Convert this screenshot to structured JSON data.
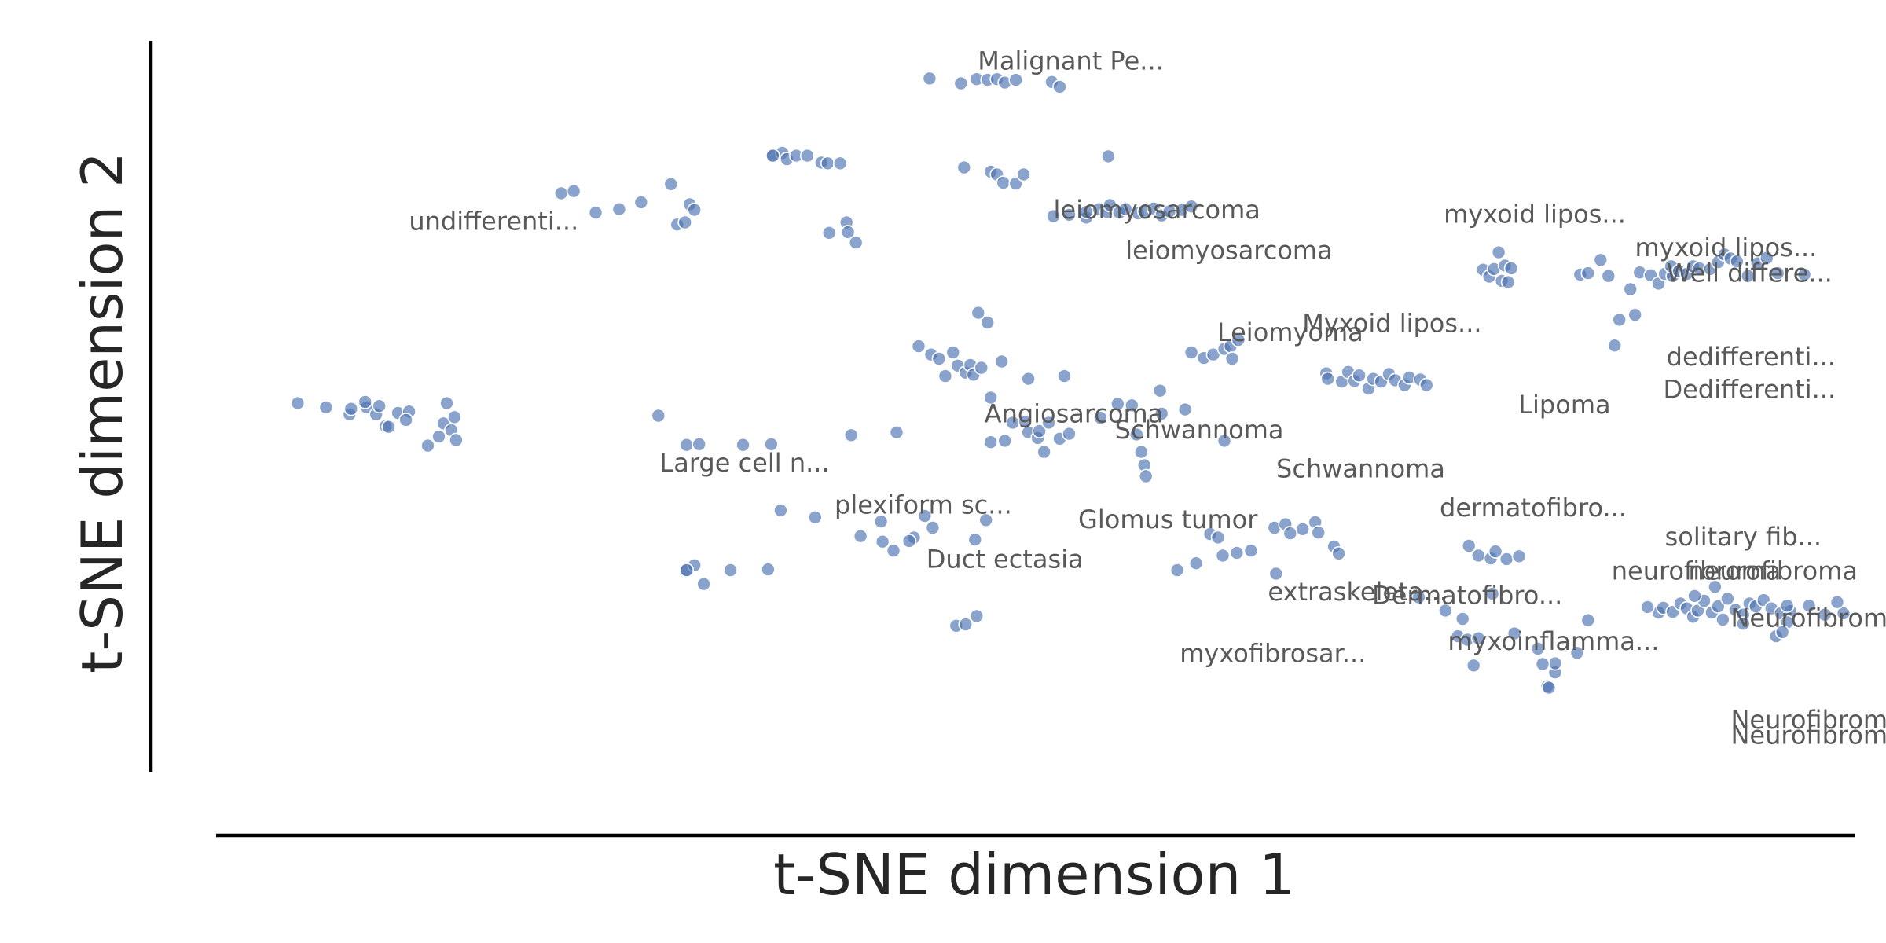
{
  "chart_data": {
    "type": "scatter",
    "xlabel": "t-SNE dimension 1",
    "ylabel": "t-SNE dimension 2",
    "xlim": [
      0,
      100
    ],
    "ylim": [
      0,
      100
    ],
    "grid": false,
    "marker_color": "#4c72b0",
    "points": [
      [
        41.5,
        95.5
      ],
      [
        43.5,
        94.8
      ],
      [
        44.5,
        95.4
      ],
      [
        45.2,
        95.3
      ],
      [
        45.8,
        95.4
      ],
      [
        46.3,
        94.9
      ],
      [
        47.0,
        95.3
      ],
      [
        49.3,
        95.0
      ],
      [
        49.8,
        94.3
      ],
      [
        43.7,
        82.7
      ],
      [
        45.4,
        82.1
      ],
      [
        45.8,
        81.7
      ],
      [
        46.2,
        80.5
      ],
      [
        47.0,
        80.4
      ],
      [
        47.5,
        81.7
      ],
      [
        49.4,
        75.7
      ],
      [
        50.4,
        75.9
      ],
      [
        51.5,
        75.5
      ],
      [
        51.5,
        76.3
      ],
      [
        52.3,
        76.7
      ],
      [
        52.8,
        76.3
      ],
      [
        53.0,
        77.3
      ],
      [
        53.6,
        76.2
      ],
      [
        54.0,
        76.7
      ],
      [
        54.8,
        76.1
      ],
      [
        55.2,
        76.4
      ],
      [
        55.8,
        76.8
      ],
      [
        56.3,
        75.8
      ],
      [
        56.8,
        76.4
      ],
      [
        57.6,
        76.6
      ],
      [
        58.2,
        77.1
      ],
      [
        18.0,
        79.0
      ],
      [
        18.8,
        79.3
      ],
      [
        20.2,
        76.2
      ],
      [
        21.7,
        76.7
      ],
      [
        23.1,
        77.7
      ],
      [
        25.0,
        80.3
      ],
      [
        25.4,
        74.5
      ],
      [
        25.9,
        74.8
      ],
      [
        26.2,
        77.4
      ],
      [
        26.5,
        76.6
      ],
      [
        31.5,
        84.4
      ],
      [
        32.1,
        84.8
      ],
      [
        32.4,
        83.9
      ],
      [
        33.0,
        84.4
      ],
      [
        33.7,
        84.4
      ],
      [
        34.6,
        83.4
      ],
      [
        35.0,
        83.3
      ],
      [
        35.8,
        83.3
      ],
      [
        35.1,
        73.3
      ],
      [
        36.2,
        74.8
      ],
      [
        36.3,
        73.4
      ],
      [
        36.8,
        71.9
      ],
      [
        1.2,
        48.8
      ],
      [
        3.0,
        48.2
      ],
      [
        4.5,
        47.2
      ],
      [
        4.6,
        48.0
      ],
      [
        5.6,
        48.2
      ],
      [
        5.5,
        49.0
      ],
      [
        6.2,
        47.2
      ],
      [
        6.4,
        48.4
      ],
      [
        6.8,
        45.5
      ],
      [
        7.0,
        45.4
      ],
      [
        7.6,
        47.4
      ],
      [
        8.3,
        47.6
      ],
      [
        8.1,
        46.4
      ],
      [
        9.5,
        42.7
      ],
      [
        10.2,
        44.0
      ],
      [
        10.5,
        45.9
      ],
      [
        10.7,
        48.8
      ],
      [
        11.0,
        44.9
      ],
      [
        11.2,
        46.8
      ],
      [
        11.3,
        43.5
      ],
      [
        24.2,
        47.0
      ],
      [
        26.0,
        42.8
      ],
      [
        26.8,
        42.9
      ],
      [
        29.6,
        42.8
      ],
      [
        31.4,
        42.9
      ],
      [
        26.0,
        24.8
      ],
      [
        26.5,
        25.5
      ],
      [
        27.1,
        22.8
      ],
      [
        28.8,
        24.8
      ],
      [
        31.2,
        24.9
      ],
      [
        40.8,
        57.0
      ],
      [
        41.6,
        55.8
      ],
      [
        42.1,
        55.2
      ],
      [
        42.5,
        52.7
      ],
      [
        43.0,
        56.1
      ],
      [
        43.3,
        54.2
      ],
      [
        43.8,
        53.2
      ],
      [
        44.1,
        54.3
      ],
      [
        44.3,
        52.9
      ],
      [
        44.8,
        53.9
      ],
      [
        44.6,
        61.8
      ],
      [
        45.2,
        60.4
      ],
      [
        46.1,
        54.8
      ],
      [
        45.4,
        49.6
      ],
      [
        47.8,
        52.3
      ],
      [
        50.1,
        52.7
      ],
      [
        36.5,
        44.2
      ],
      [
        39.4,
        44.6
      ],
      [
        45.4,
        43.2
      ],
      [
        46.3,
        43.4
      ],
      [
        46.8,
        46.0
      ],
      [
        47.6,
        46.1
      ],
      [
        47.8,
        44.6
      ],
      [
        48.4,
        43.8
      ],
      [
        48.5,
        44.8
      ],
      [
        49.1,
        46.0
      ],
      [
        48.8,
        41.8
      ],
      [
        49.8,
        43.7
      ],
      [
        50.4,
        44.4
      ],
      [
        52.4,
        46.7
      ],
      [
        53.5,
        48.7
      ],
      [
        54.4,
        48.5
      ],
      [
        56.3,
        47.3
      ],
      [
        54.7,
        44.3
      ],
      [
        55.0,
        41.8
      ],
      [
        55.2,
        39.9
      ],
      [
        55.3,
        38.3
      ],
      [
        56.2,
        50.6
      ],
      [
        57.8,
        47.9
      ],
      [
        60.3,
        43.4
      ],
      [
        58.2,
        56.1
      ],
      [
        59.0,
        55.3
      ],
      [
        59.6,
        55.8
      ],
      [
        60.3,
        56.6
      ],
      [
        60.7,
        57.0
      ],
      [
        60.8,
        55.2
      ],
      [
        61.2,
        57.9
      ],
      [
        66.8,
        53.1
      ],
      [
        66.9,
        52.3
      ],
      [
        67.8,
        51.9
      ],
      [
        68.2,
        53.3
      ],
      [
        68.6,
        52.0
      ],
      [
        68.9,
        52.8
      ],
      [
        69.5,
        50.9
      ],
      [
        69.8,
        52.3
      ],
      [
        70.3,
        51.9
      ],
      [
        70.8,
        53.0
      ],
      [
        71.2,
        52.1
      ],
      [
        71.8,
        51.4
      ],
      [
        72.1,
        52.5
      ],
      [
        72.8,
        52.2
      ],
      [
        73.2,
        51.4
      ],
      [
        76.8,
        68.0
      ],
      [
        77.2,
        67.0
      ],
      [
        77.5,
        68.1
      ],
      [
        78.2,
        68.6
      ],
      [
        78.6,
        68.2
      ],
      [
        78.0,
        66.4
      ],
      [
        77.8,
        70.5
      ],
      [
        78.4,
        66.2
      ],
      [
        83.0,
        67.3
      ],
      [
        83.5,
        67.5
      ],
      [
        84.3,
        69.4
      ],
      [
        84.8,
        67.1
      ],
      [
        85.2,
        57.1
      ],
      [
        85.5,
        60.8
      ],
      [
        86.8,
        67.6
      ],
      [
        87.5,
        67.2
      ],
      [
        88.0,
        66.0
      ],
      [
        88.4,
        67.4
      ],
      [
        88.9,
        67.1
      ],
      [
        88.8,
        68.5
      ],
      [
        89.3,
        67.8
      ],
      [
        89.8,
        67.4
      ],
      [
        90.2,
        68.5
      ],
      [
        90.6,
        68.2
      ],
      [
        91.3,
        68.1
      ],
      [
        91.8,
        69.1
      ],
      [
        92.2,
        70.2
      ],
      [
        92.6,
        69.6
      ],
      [
        93.0,
        69.2
      ],
      [
        93.7,
        67.1
      ],
      [
        94.3,
        68.9
      ],
      [
        94.9,
        69.7
      ],
      [
        95.6,
        67.5
      ],
      [
        97.3,
        67.3
      ],
      [
        86.5,
        61.5
      ],
      [
        86.2,
        65.2
      ],
      [
        32.0,
        33.4
      ],
      [
        34.2,
        32.4
      ],
      [
        37.1,
        29.7
      ],
      [
        38.4,
        31.8
      ],
      [
        38.5,
        28.9
      ],
      [
        39.2,
        27.6
      ],
      [
        40.5,
        29.5
      ],
      [
        40.2,
        29.0
      ],
      [
        41.7,
        30.9
      ],
      [
        41.2,
        32.6
      ],
      [
        45.1,
        32.0
      ],
      [
        44.4,
        29.2
      ],
      [
        63.5,
        30.9
      ],
      [
        64.2,
        31.4
      ],
      [
        64.5,
        30.1
      ],
      [
        65.3,
        30.7
      ],
      [
        66.1,
        31.7
      ],
      [
        66.3,
        30.2
      ],
      [
        67.3,
        28.2
      ],
      [
        67.6,
        27.2
      ],
      [
        57.3,
        24.8
      ],
      [
        58.5,
        25.8
      ],
      [
        59.4,
        30.0
      ],
      [
        59.9,
        29.5
      ],
      [
        60.2,
        26.9
      ],
      [
        61.1,
        27.3
      ],
      [
        62.0,
        27.6
      ],
      [
        63.6,
        24.3
      ],
      [
        75.9,
        28.3
      ],
      [
        76.5,
        26.9
      ],
      [
        77.3,
        26.5
      ],
      [
        77.6,
        27.5
      ],
      [
        78.3,
        26.4
      ],
      [
        79.1,
        26.8
      ],
      [
        43.2,
        16.8
      ],
      [
        43.8,
        17.0
      ],
      [
        44.5,
        18.2
      ],
      [
        72.7,
        20.9
      ],
      [
        74.4,
        19.0
      ],
      [
        75.5,
        17.8
      ],
      [
        75.2,
        15.3
      ],
      [
        75.8,
        14.8
      ],
      [
        77.4,
        21.4
      ],
      [
        76.5,
        15.0
      ],
      [
        78.8,
        15.7
      ],
      [
        76.2,
        11.1
      ],
      [
        80.3,
        13.5
      ],
      [
        83.5,
        17.6
      ],
      [
        81.4,
        10.1
      ],
      [
        81.4,
        11.4
      ],
      [
        82.8,
        12.9
      ],
      [
        80.9,
        8.1
      ],
      [
        80.6,
        11.3
      ],
      [
        81.0,
        7.9
      ],
      [
        88.0,
        18.7
      ],
      [
        87.3,
        19.5
      ],
      [
        88.3,
        19.4
      ],
      [
        88.9,
        18.8
      ],
      [
        89.4,
        20.0
      ],
      [
        89.8,
        19.3
      ],
      [
        90.2,
        18.1
      ],
      [
        90.5,
        19.0
      ],
      [
        90.9,
        20.4
      ],
      [
        91.4,
        18.7
      ],
      [
        91.8,
        19.6
      ],
      [
        92.1,
        17.7
      ],
      [
        92.4,
        20.7
      ],
      [
        92.9,
        19.1
      ],
      [
        93.4,
        18.4
      ],
      [
        93.8,
        20.0
      ],
      [
        94.2,
        19.6
      ],
      [
        94.7,
        20.5
      ],
      [
        95.2,
        19.3
      ],
      [
        95.8,
        18.6
      ],
      [
        96.4,
        18.9
      ],
      [
        96.2,
        19.7
      ],
      [
        97.6,
        19.7
      ],
      [
        98.6,
        18.4
      ],
      [
        99.8,
        18.6
      ],
      [
        90.3,
        21.1
      ],
      [
        91.6,
        22.4
      ],
      [
        93.4,
        17.1
      ],
      [
        96.2,
        17.3
      ],
      [
        95.5,
        15.3
      ],
      [
        95.9,
        15.9
      ],
      [
        99.4,
        20.2
      ],
      [
        26.0,
        24.8
      ],
      [
        31.5,
        84.4
      ],
      [
        52.9,
        84.3
      ]
    ],
    "annotations": [
      {
        "text": "Malignant Pe...",
        "x": 50.5,
        "y": 98.0
      },
      {
        "text": "undifferenti...",
        "x": 13.7,
        "y": 75.0
      },
      {
        "text": "leiomyosarcoma",
        "x": 56.0,
        "y": 76.6
      },
      {
        "text": "leiomyosarcoma",
        "x": 60.6,
        "y": 70.8
      },
      {
        "text": "myxoid lipos...",
        "x": 80.1,
        "y": 76.0
      },
      {
        "text": "myxoid lipos...",
        "x": 92.3,
        "y": 71.2
      },
      {
        "text": "Well differe...",
        "x": 93.8,
        "y": 67.5
      },
      {
        "text": "Myxoid lipos...",
        "x": 71.0,
        "y": 60.3
      },
      {
        "text": "Leiomyoma",
        "x": 64.5,
        "y": 59.0
      },
      {
        "text": "dedifferenti...",
        "x": 93.9,
        "y": 55.5
      },
      {
        "text": "Dedifferenti...",
        "x": 93.8,
        "y": 50.8
      },
      {
        "text": "Angiosarcoma",
        "x": 50.7,
        "y": 47.3
      },
      {
        "text": "Schwannoma",
        "x": 58.7,
        "y": 45.0
      },
      {
        "text": "Lipoma",
        "x": 82.0,
        "y": 48.6
      },
      {
        "text": "Schwannoma",
        "x": 69.0,
        "y": 39.4
      },
      {
        "text": "Large cell n...",
        "x": 29.7,
        "y": 40.2
      },
      {
        "text": "plexiform sc...",
        "x": 41.1,
        "y": 34.2
      },
      {
        "text": "Glomus tumor",
        "x": 56.7,
        "y": 32.1
      },
      {
        "text": "dermatofibro...",
        "x": 80.0,
        "y": 33.8
      },
      {
        "text": "solitary fib...",
        "x": 93.4,
        "y": 29.6
      },
      {
        "text": "Duct ectasia",
        "x": 46.3,
        "y": 26.4
      },
      {
        "text": "neurofibroma",
        "x": 90.4,
        "y": 24.7
      },
      {
        "text": "neurofibroma",
        "x": 95.3,
        "y": 24.7
      },
      {
        "text": "Dermatofibro...",
        "x": 75.8,
        "y": 21.2
      },
      {
        "text": "extraskeleta...",
        "x": 68.8,
        "y": 21.7
      },
      {
        "text": "Neurofibroma",
        "x": 98.1,
        "y": 17.9
      },
      {
        "text": "myxoinflamma...",
        "x": 81.3,
        "y": 14.6
      },
      {
        "text": "myxofibrosar...",
        "x": 63.4,
        "y": 12.8
      },
      {
        "text": "Neurofibroma",
        "x": 98.1,
        "y": 3.3
      },
      {
        "text": "Neurofibroma",
        "x": 98.1,
        "y": 1.1
      }
    ]
  }
}
